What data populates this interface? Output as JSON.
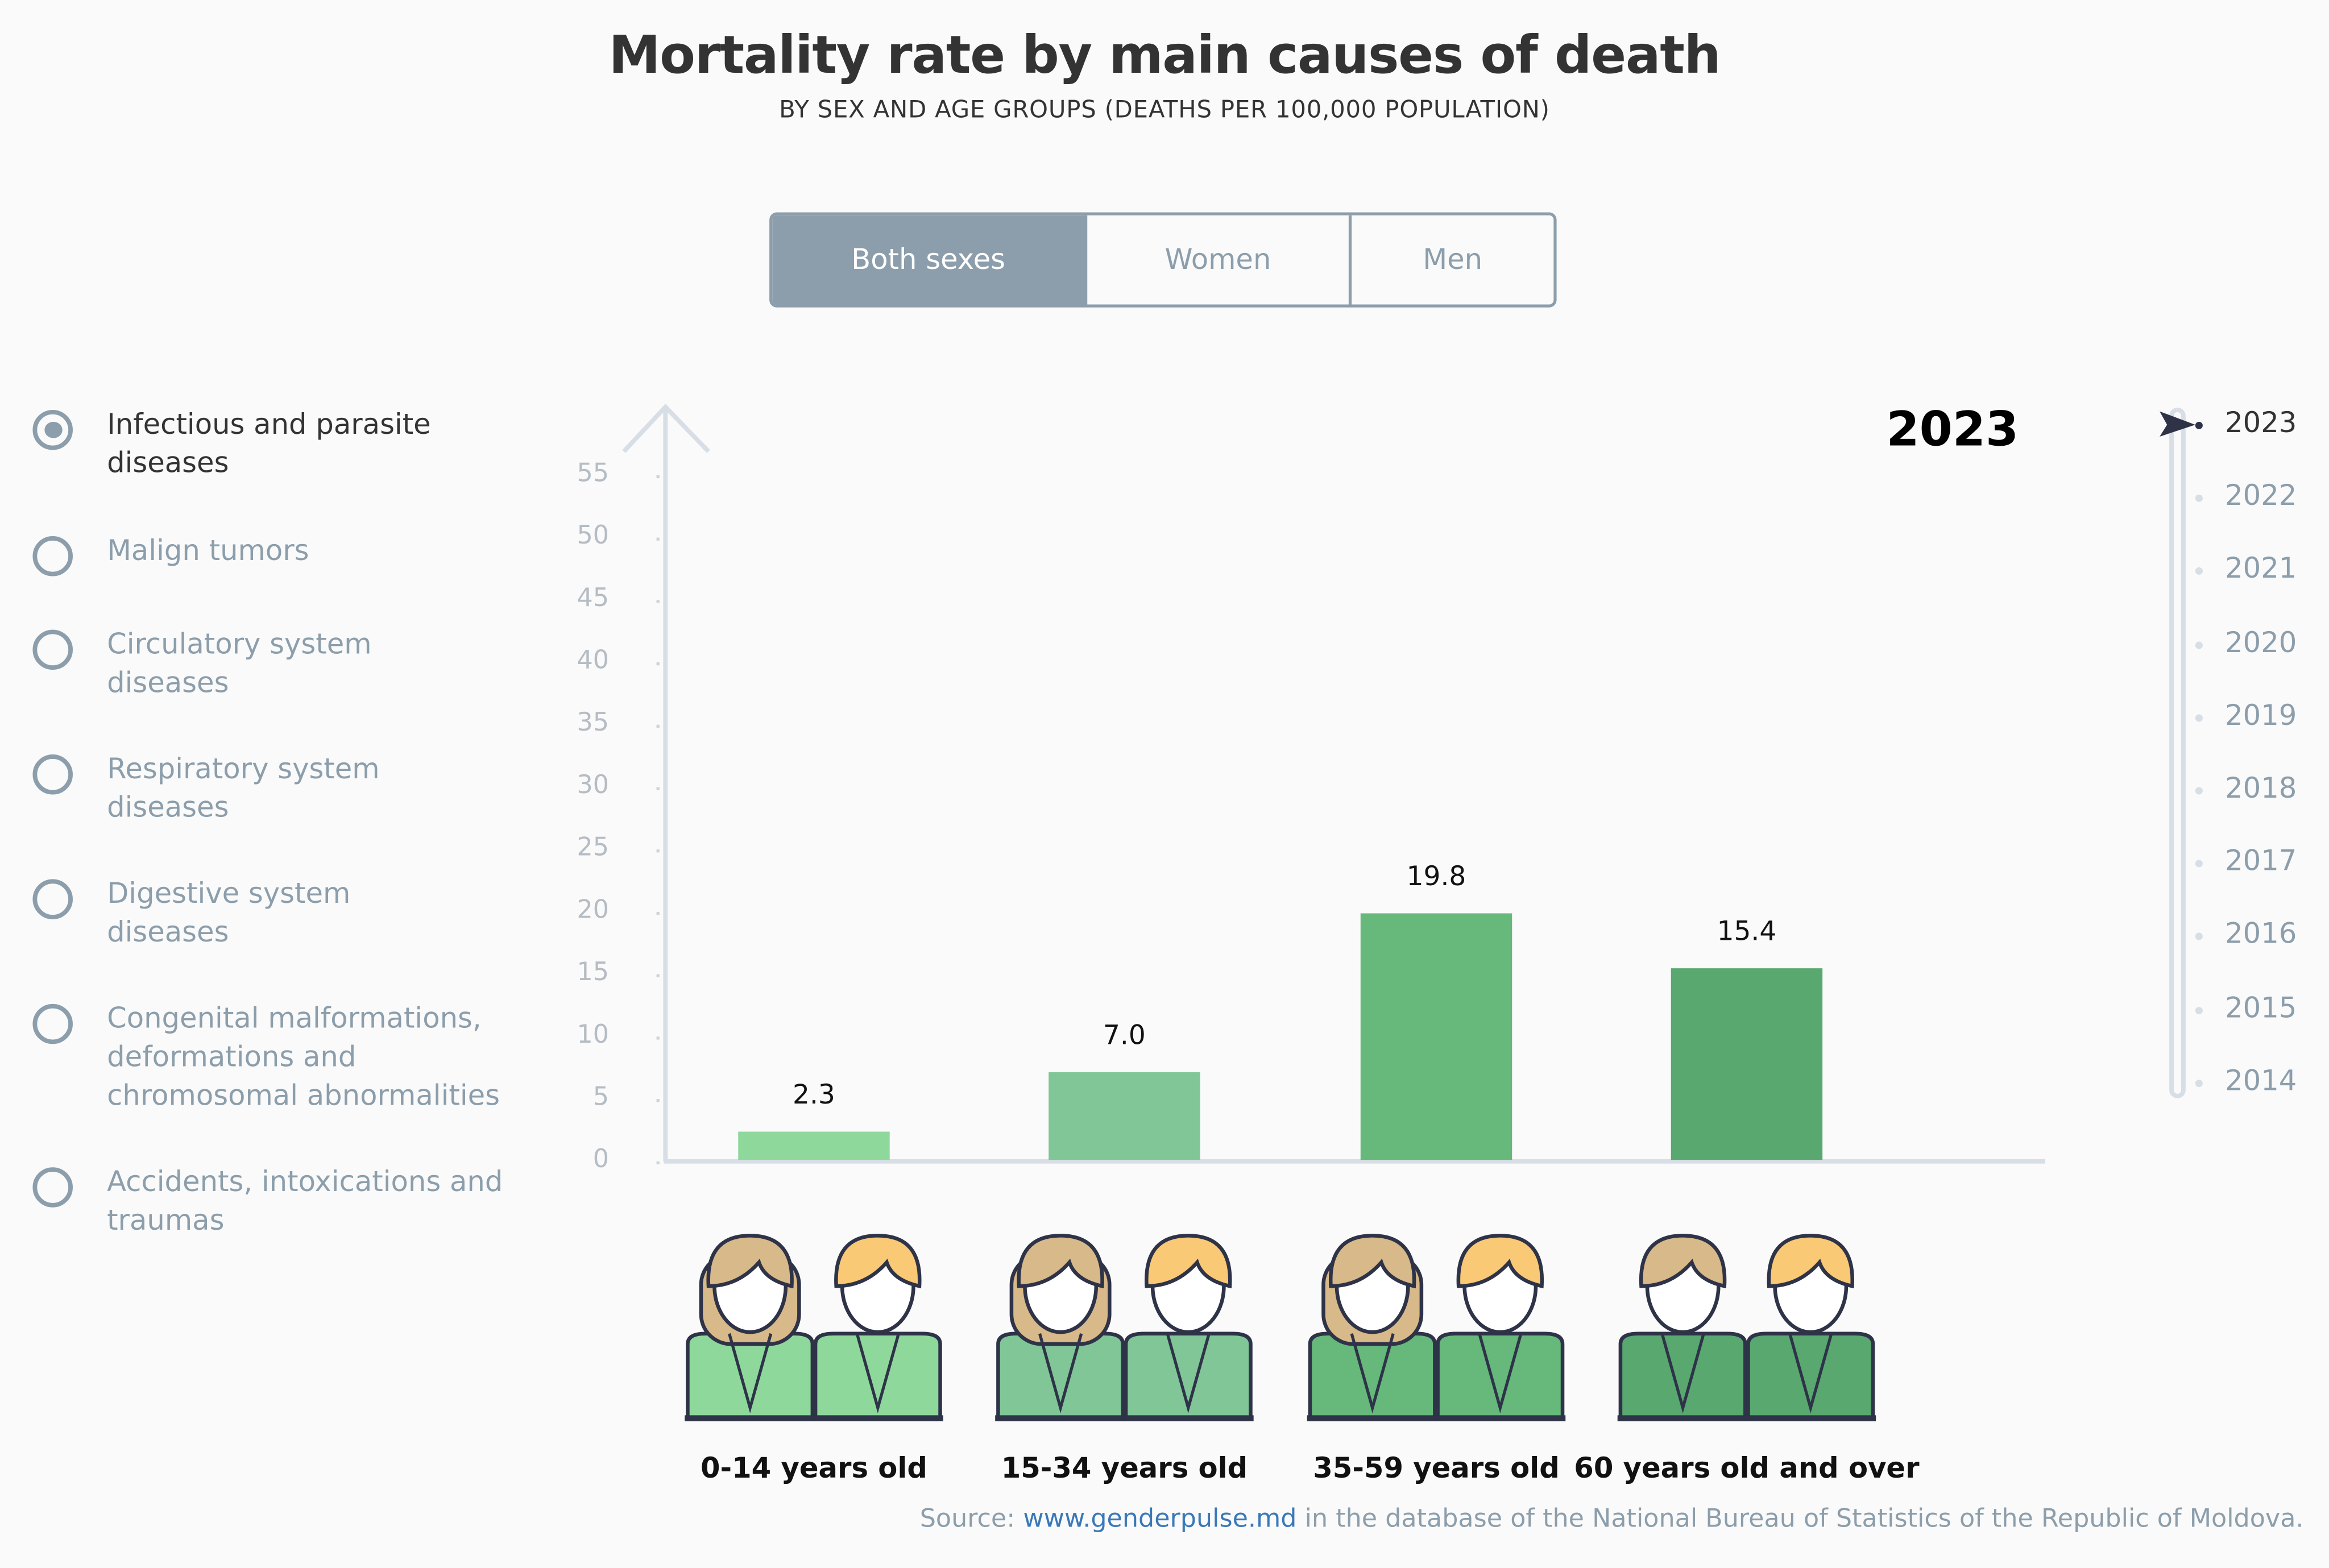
{
  "header": {
    "title": "Mortality rate by main causes of death",
    "subtitle": "BY SEX AND AGE GROUPS (DEATHS PER 100,000 POPULATION)"
  },
  "toggle": {
    "options": [
      "Both sexes",
      "Women",
      "Men"
    ],
    "selected": "Both sexes"
  },
  "causes": {
    "items": [
      "Infectious and parasite diseases",
      "Malign tumors",
      "Circulatory system diseases",
      "Respiratory system diseases",
      "Digestive system diseases",
      "Congenital malformations, deformations and chromosomal abnormalities",
      "Accidents, intoxications and traumas"
    ],
    "selected": 0
  },
  "chart_data": {
    "type": "bar",
    "categories": [
      "0-14 years old",
      "15-34 years old",
      "35-59 years old",
      "60 years old and over"
    ],
    "values": [
      2.3,
      7.0,
      19.8,
      15.4
    ],
    "value_labels": [
      "2.3",
      "7.0",
      "19.8",
      "15.4"
    ],
    "colors": [
      "#8fd89c",
      "#80c697",
      "#66b87b",
      "#58a86f"
    ],
    "yticks": [
      0,
      5,
      10,
      15,
      20,
      25,
      30,
      35,
      40,
      45,
      50,
      55
    ],
    "ylim": [
      0,
      55
    ],
    "grid": false,
    "year": "2023"
  },
  "timeline": {
    "years": [
      "2023",
      "2022",
      "2021",
      "2020",
      "2019",
      "2018",
      "2017",
      "2016",
      "2015",
      "2014"
    ],
    "selected": "2023"
  },
  "source": {
    "prefix": "Source: ",
    "link": "www.genderpulse.md",
    "suffix": " in the database of the National Bureau of Statistics of the Republic of Moldova."
  },
  "colors": {
    "accent": "#8c9eab",
    "hair_women": "#d8b98a",
    "hair_men": "#f9c976",
    "outline": "#2e3348"
  }
}
